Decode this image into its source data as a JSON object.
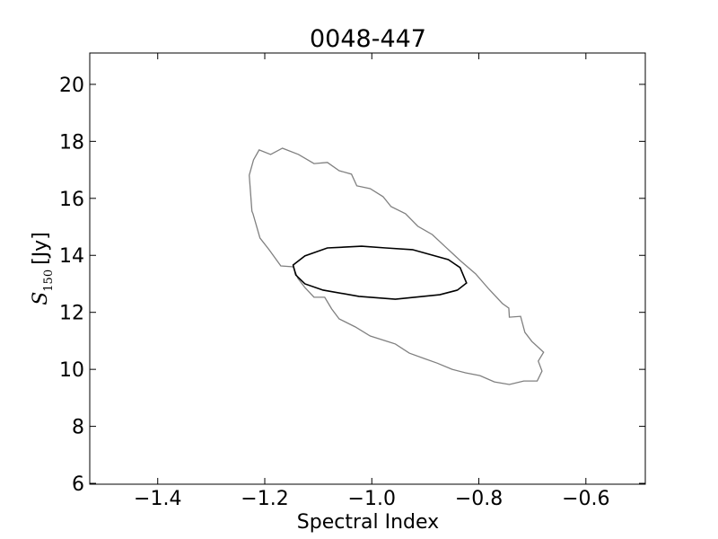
{
  "chart_data": {
    "type": "contour",
    "title": "0048-447",
    "x_label": "Spectral Index",
    "y_label": {
      "symbol": "S",
      "subscript": "150",
      "unit": "[Jy]"
    },
    "xlim": [
      -1.527,
      -0.489
    ],
    "ylim": [
      5.97,
      21.1
    ],
    "xticks": [
      {
        "value": -1.4,
        "label": "−1.4"
      },
      {
        "value": -1.2,
        "label": "−1.2"
      },
      {
        "value": -1.0,
        "label": "−1.0"
      },
      {
        "value": -0.8,
        "label": "−0.8"
      },
      {
        "value": -0.6,
        "label": "−0.6"
      }
    ],
    "yticks": [
      6,
      8,
      10,
      12,
      14,
      16,
      18,
      20
    ],
    "series": [
      {
        "color": "#808080",
        "x": [
          -1.2105,
          -1.189,
          -1.167,
          -1.137,
          -1.108,
          -1.083,
          -1.061,
          -1.038,
          -1.028,
          -1.003,
          -0.979,
          -0.964,
          -0.937,
          -0.914,
          -0.887,
          -0.862,
          -0.835,
          -0.806,
          -0.781,
          -0.756,
          -0.744,
          -0.743,
          -0.722,
          -0.714,
          -0.701,
          -0.679,
          -0.689,
          -0.682,
          -0.691,
          -0.716,
          -0.743,
          -0.771,
          -0.798,
          -0.825,
          -0.85,
          -0.878,
          -0.902,
          -0.93,
          -0.956,
          -1.003,
          -1.031,
          -1.061,
          -1.075,
          -1.088,
          -1.108,
          -1.125,
          -1.138,
          -1.147,
          -1.17,
          -1.192,
          -1.209,
          -1.222,
          -1.224,
          -1.229,
          -1.221
        ],
        "values": [
          17.7,
          17.54,
          17.76,
          17.54,
          17.22,
          17.26,
          16.97,
          16.85,
          16.44,
          16.34,
          16.06,
          15.71,
          15.46,
          15.02,
          14.73,
          14.29,
          13.82,
          13.35,
          12.81,
          12.31,
          12.15,
          11.83,
          11.86,
          11.3,
          10.98,
          10.6,
          10.29,
          9.94,
          9.59,
          9.59,
          9.47,
          9.56,
          9.78,
          9.88,
          10.0,
          10.22,
          10.38,
          10.57,
          10.89,
          11.17,
          11.49,
          11.77,
          12.12,
          12.53,
          12.53,
          12.87,
          13.19,
          13.6,
          13.63,
          14.2,
          14.61,
          15.46,
          15.55,
          16.81,
          17.35
        ]
      },
      {
        "color": "#000000",
        "x": [
          -1.147,
          -1.125,
          -1.083,
          -1.019,
          -0.974,
          -0.924,
          -0.857,
          -0.835,
          -0.823,
          -0.84,
          -0.873,
          -0.956,
          -1.024,
          -1.091,
          -1.125,
          -1.142
        ],
        "values": [
          13.66,
          13.98,
          14.26,
          14.32,
          14.26,
          14.2,
          13.85,
          13.57,
          13.03,
          12.78,
          12.62,
          12.46,
          12.56,
          12.78,
          13.0,
          13.31
        ]
      }
    ]
  }
}
